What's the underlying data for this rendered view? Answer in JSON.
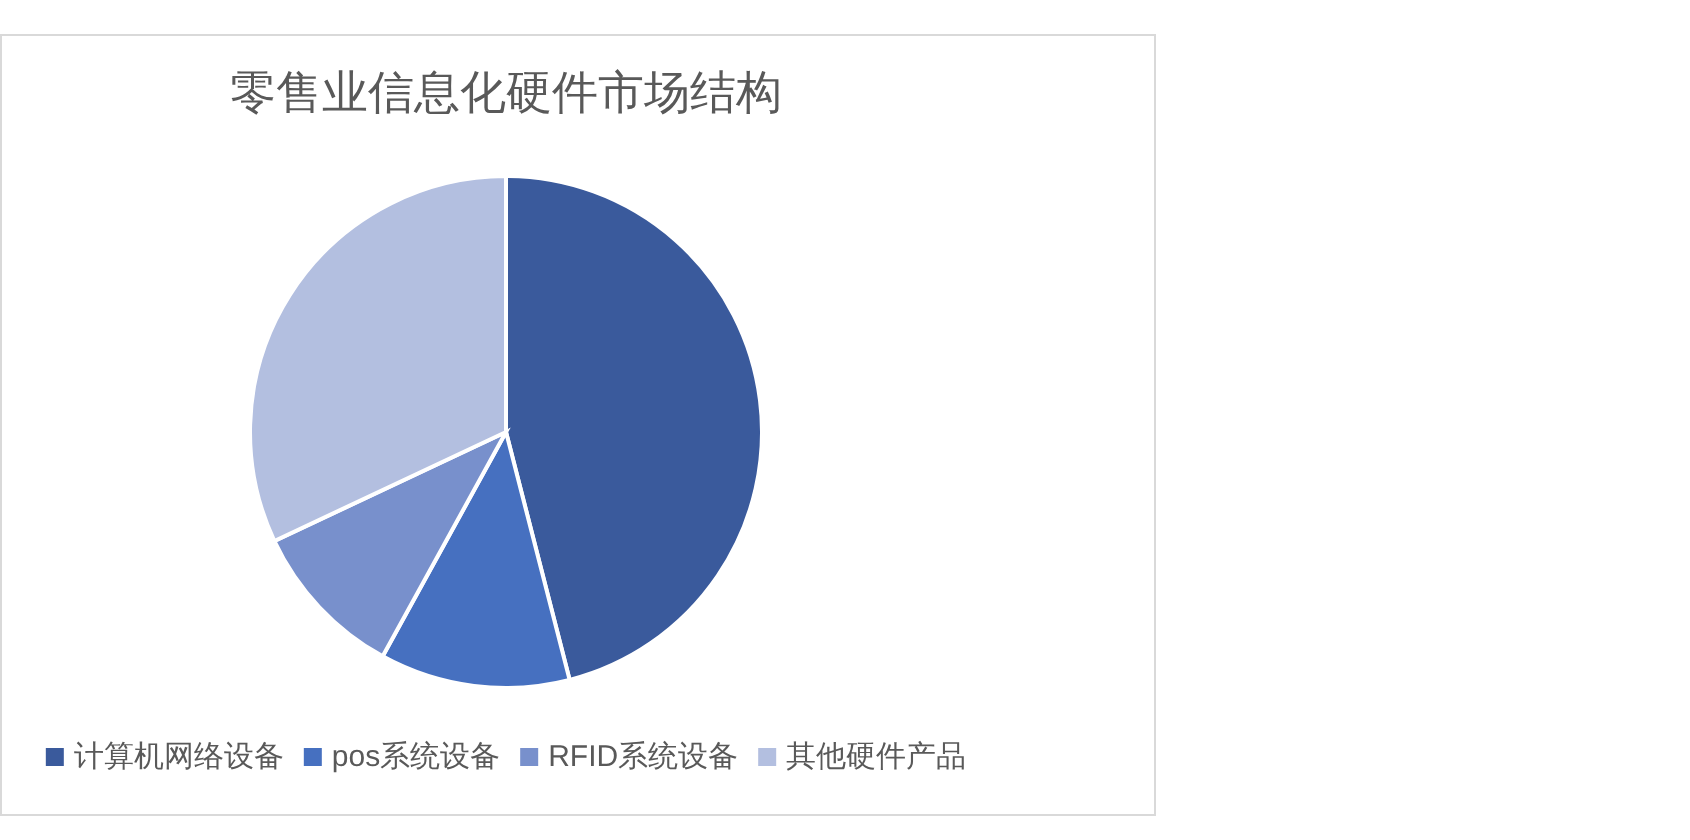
{
  "chart_data": {
    "type": "pie",
    "title": "零售业信息化硬件市场结构",
    "categories": [
      "计算机网络设备",
      "pos系统设备",
      "RFID系统设备",
      "其他硬件产品"
    ],
    "values": [
      46,
      12,
      10,
      32
    ],
    "colors": [
      "#3a5a9c",
      "#4670c0",
      "#7890cc",
      "#b3bfe0"
    ],
    "legend": "bottom"
  }
}
